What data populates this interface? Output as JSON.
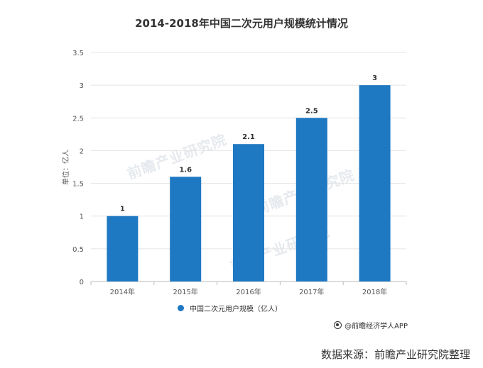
{
  "chart_data": {
    "type": "bar",
    "title": "2014-2018年中国二次元用户规模统计情况",
    "ylabel": "单位：亿人",
    "xlabel": "",
    "categories": [
      "2014年",
      "2015年",
      "2016年",
      "2017年",
      "2018年"
    ],
    "series": [
      {
        "name": "中国二次元用户规模（亿人）",
        "values": [
          1,
          1.6,
          2.1,
          2.5,
          3
        ],
        "data_labels": [
          "1",
          "1.6",
          "2.1",
          "2.5",
          "3"
        ]
      }
    ],
    "ylim": [
      0,
      3.5
    ],
    "yticks": [
      0,
      0.5,
      1,
      1.5,
      2,
      2.5,
      3,
      3.5
    ],
    "ytick_labels": [
      "0",
      "0.5",
      "1",
      "1.5",
      "2",
      "2.5",
      "3",
      "3.5"
    ],
    "grid": true,
    "legend": "bottom-center",
    "bar_color": "#1e78c2"
  },
  "credit_text": "@前瞻经济学人APP",
  "source_text": "数据来源：前瞻产业研究院整理",
  "watermark_text": "前瞻产业研究院"
}
